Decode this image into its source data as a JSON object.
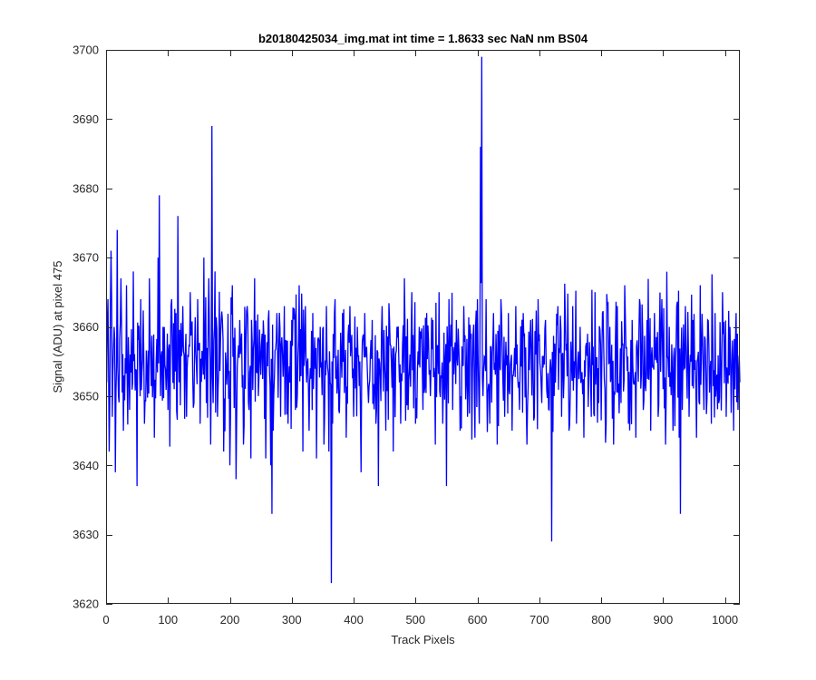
{
  "chart_data": {
    "type": "line",
    "title": "b20180425034_img.mat int time = 1.8633 sec  NaN nm BS04",
    "xlabel": "Track Pixels",
    "ylabel": "Signal (ADU) at pixel 475",
    "xlim": [
      0,
      1024
    ],
    "ylim": [
      3620,
      3700
    ],
    "x_ticks": [
      0,
      100,
      200,
      300,
      400,
      500,
      600,
      700,
      800,
      900,
      1000
    ],
    "y_ticks": [
      3620,
      3630,
      3640,
      3650,
      3660,
      3670,
      3680,
      3690,
      3700
    ],
    "grid": false,
    "legend": "none",
    "line_color": "#0000ff",
    "series": [
      {
        "baseline": 3655,
        "x_range": [
          1,
          1024
        ],
        "points": [
          [
            1,
            3652
          ],
          [
            3,
            3664
          ],
          [
            5,
            3642
          ],
          [
            8,
            3671
          ],
          [
            10,
            3647
          ],
          [
            13,
            3660
          ],
          [
            15,
            3639
          ],
          [
            18,
            3674
          ],
          [
            20,
            3650
          ],
          [
            24,
            3667
          ],
          [
            28,
            3645
          ],
          [
            33,
            3666
          ],
          [
            38,
            3648
          ],
          [
            44,
            3668
          ],
          [
            50,
            3637
          ],
          [
            56,
            3664
          ],
          [
            62,
            3646
          ],
          [
            70,
            3667
          ],
          [
            78,
            3644
          ],
          [
            84,
            3670
          ],
          [
            86,
            3679
          ],
          [
            88,
            3650
          ],
          [
            92,
            3660
          ],
          [
            100,
            3648
          ],
          [
            106,
            3664
          ],
          [
            110,
            3651
          ],
          [
            116,
            3676
          ],
          [
            118,
            3652
          ],
          [
            124,
            3663
          ],
          [
            130,
            3647
          ],
          [
            136,
            3665
          ],
          [
            142,
            3649
          ],
          [
            148,
            3664
          ],
          [
            152,
            3646
          ],
          [
            158,
            3670
          ],
          [
            162,
            3649
          ],
          [
            166,
            3667
          ],
          [
            169,
            3643
          ],
          [
            171,
            3689
          ],
          [
            173,
            3649
          ],
          [
            176,
            3668
          ],
          [
            180,
            3647
          ],
          [
            186,
            3661
          ],
          [
            190,
            3642
          ],
          [
            196,
            3654
          ],
          [
            200,
            3640
          ],
          [
            204,
            3666
          ],
          [
            210,
            3638
          ],
          [
            216,
            3661
          ],
          [
            222,
            3643
          ],
          [
            228,
            3663
          ],
          [
            234,
            3641
          ],
          [
            240,
            3667
          ],
          [
            246,
            3650
          ],
          [
            252,
            3659
          ],
          [
            258,
            3641
          ],
          [
            262,
            3661
          ],
          [
            266,
            3640
          ],
          [
            268,
            3633
          ],
          [
            270,
            3645
          ],
          [
            276,
            3662
          ],
          [
            282,
            3647
          ],
          [
            288,
            3663
          ],
          [
            294,
            3646
          ],
          [
            300,
            3661
          ],
          [
            306,
            3648
          ],
          [
            312,
            3666
          ],
          [
            318,
            3642
          ],
          [
            322,
            3663
          ],
          [
            328,
            3645
          ],
          [
            334,
            3662
          ],
          [
            340,
            3641
          ],
          [
            346,
            3660
          ],
          [
            352,
            3643
          ],
          [
            356,
            3663
          ],
          [
            360,
            3642
          ],
          [
            362,
            3652
          ],
          [
            364,
            3623
          ],
          [
            366,
            3646
          ],
          [
            370,
            3664
          ],
          [
            376,
            3648
          ],
          [
            382,
            3662
          ],
          [
            388,
            3644
          ],
          [
            394,
            3663
          ],
          [
            400,
            3647
          ],
          [
            406,
            3660
          ],
          [
            412,
            3639
          ],
          [
            418,
            3662
          ],
          [
            424,
            3649
          ],
          [
            430,
            3661
          ],
          [
            436,
            3646
          ],
          [
            440,
            3637
          ],
          [
            446,
            3663
          ],
          [
            452,
            3645
          ],
          [
            458,
            3661
          ],
          [
            464,
            3642
          ],
          [
            470,
            3660
          ],
          [
            476,
            3646
          ],
          [
            482,
            3667
          ],
          [
            488,
            3648
          ],
          [
            494,
            3665
          ],
          [
            500,
            3646
          ],
          [
            506,
            3660
          ],
          [
            512,
            3648
          ],
          [
            518,
            3662
          ],
          [
            524,
            3650
          ],
          [
            528,
            3661
          ],
          [
            532,
            3643
          ],
          [
            538,
            3665
          ],
          [
            544,
            3646
          ],
          [
            550,
            3637
          ],
          [
            554,
            3664
          ],
          [
            560,
            3648
          ],
          [
            566,
            3661
          ],
          [
            572,
            3645
          ],
          [
            578,
            3663
          ],
          [
            584,
            3647
          ],
          [
            590,
            3659
          ],
          [
            596,
            3644
          ],
          [
            600,
            3664
          ],
          [
            603,
            3646
          ],
          [
            605,
            3686
          ],
          [
            607,
            3699
          ],
          [
            609,
            3650
          ],
          [
            614,
            3664
          ],
          [
            620,
            3646
          ],
          [
            626,
            3662
          ],
          [
            632,
            3643
          ],
          [
            638,
            3664
          ],
          [
            644,
            3647
          ],
          [
            650,
            3662
          ],
          [
            656,
            3645
          ],
          [
            662,
            3663
          ],
          [
            668,
            3648
          ],
          [
            674,
            3662
          ],
          [
            680,
            3643
          ],
          [
            686,
            3661
          ],
          [
            692,
            3647
          ],
          [
            698,
            3664
          ],
          [
            704,
            3649
          ],
          [
            710,
            3661
          ],
          [
            716,
            3648
          ],
          [
            720,
            3629
          ],
          [
            724,
            3650
          ],
          [
            730,
            3663
          ],
          [
            736,
            3647
          ],
          [
            742,
            3661
          ],
          [
            748,
            3645
          ],
          [
            754,
            3663
          ],
          [
            760,
            3646
          ],
          [
            766,
            3660
          ],
          [
            772,
            3644
          ],
          [
            778,
            3659
          ],
          [
            784,
            3647
          ],
          [
            790,
            3665
          ],
          [
            796,
            3649
          ],
          [
            802,
            3662
          ],
          [
            808,
            3646
          ],
          [
            814,
            3660
          ],
          [
            820,
            3643
          ],
          [
            826,
            3663
          ],
          [
            832,
            3649
          ],
          [
            838,
            3666
          ],
          [
            844,
            3646
          ],
          [
            850,
            3661
          ],
          [
            856,
            3644
          ],
          [
            862,
            3664
          ],
          [
            868,
            3648
          ],
          [
            874,
            3661
          ],
          [
            880,
            3645
          ],
          [
            886,
            3662
          ],
          [
            892,
            3647
          ],
          [
            898,
            3664
          ],
          [
            904,
            3643
          ],
          [
            910,
            3660
          ],
          [
            916,
            3645
          ],
          [
            922,
            3663
          ],
          [
            926,
            3644
          ],
          [
            928,
            3633
          ],
          [
            931,
            3648
          ],
          [
            936,
            3663
          ],
          [
            942,
            3647
          ],
          [
            948,
            3661
          ],
          [
            954,
            3644
          ],
          [
            960,
            3666
          ],
          [
            966,
            3648
          ],
          [
            972,
            3661
          ],
          [
            978,
            3646
          ],
          [
            984,
            3662
          ],
          [
            990,
            3649
          ],
          [
            996,
            3665
          ],
          [
            1002,
            3647
          ],
          [
            1008,
            3660
          ],
          [
            1014,
            3645
          ],
          [
            1018,
            3662
          ],
          [
            1021,
            3648
          ],
          [
            1024,
            3652
          ]
        ]
      }
    ]
  }
}
